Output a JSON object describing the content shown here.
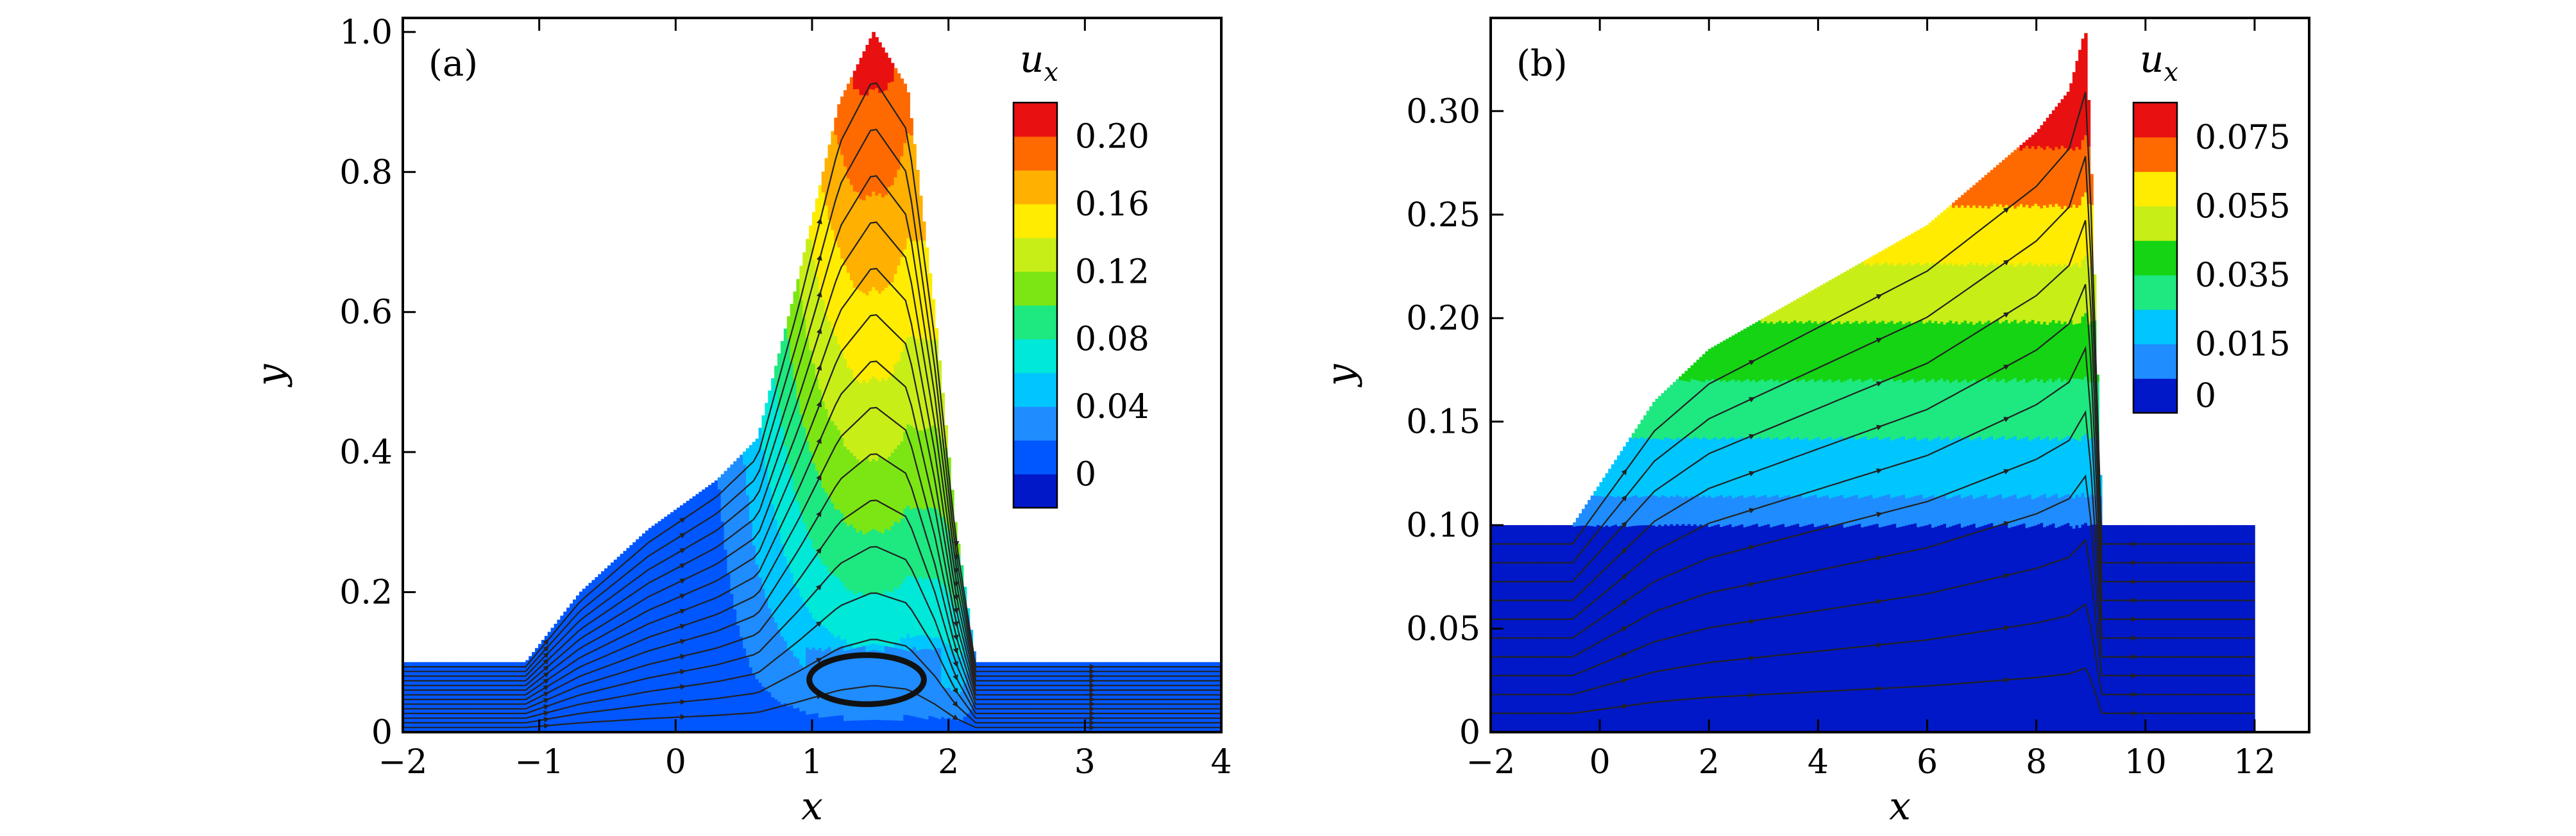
{
  "figure": {
    "background": "#ffffff",
    "axis_color": "#000000"
  },
  "chart_data": [
    {
      "type": "heatmap",
      "panel_label": "(a)",
      "xlabel": "x",
      "ylabel": "y",
      "xlim": [
        -2,
        4
      ],
      "ylim": [
        0,
        1.02
      ],
      "x_ticks": [
        -2,
        -1,
        0,
        1,
        2,
        3,
        4
      ],
      "x_tick_labels": [
        "−2",
        "−1",
        "0",
        "1",
        "2",
        "3",
        "4"
      ],
      "y_ticks": [
        0,
        0.2,
        0.4,
        0.6,
        0.8,
        1.0
      ],
      "y_tick_labels": [
        "0",
        "0.2",
        "0.4",
        "0.6",
        "0.8",
        "1.0"
      ],
      "colorbar": {
        "title": "u",
        "title_sub": "x",
        "min": -0.02,
        "max": 0.22,
        "levels": [
          -0.02,
          0,
          0.02,
          0.04,
          0.06,
          0.08,
          0.1,
          0.12,
          0.14,
          0.16,
          0.18,
          0.2,
          0.22
        ],
        "tick_values": [
          0,
          0.04,
          0.08,
          0.12,
          0.16,
          0.2
        ],
        "tick_labels": [
          "0",
          "0.04",
          "0.08",
          "0.12",
          "0.16",
          "0.20"
        ]
      },
      "surface": [
        [
          -2,
          0.1
        ],
        [
          -1.1,
          0.1
        ],
        [
          -0.7,
          0.2
        ],
        [
          -0.2,
          0.29
        ],
        [
          0.3,
          0.36
        ],
        [
          0.6,
          0.42
        ],
        [
          0.9,
          0.65
        ],
        [
          1.2,
          0.9
        ],
        [
          1.45,
          1.0
        ],
        [
          1.7,
          0.92
        ],
        [
          1.9,
          0.6
        ],
        [
          2.05,
          0.3
        ],
        [
          2.2,
          0.1
        ],
        [
          4,
          0.1
        ]
      ],
      "field": {
        "type": "overturning-wave",
        "crest_x": 1.45,
        "crest_y": 1.0,
        "still_depth": 0.1,
        "umax": 0.21
      },
      "vortex": {
        "cx": 1.4,
        "cy": 0.075,
        "rx": 0.42,
        "ry": 0.035
      },
      "streamline_count": 14
    },
    {
      "type": "heatmap",
      "panel_label": "(b)",
      "xlabel": "x",
      "ylabel": "y",
      "xlim": [
        -2,
        13
      ],
      "ylim": [
        0,
        0.345
      ],
      "x_ticks": [
        -2,
        0,
        2,
        4,
        6,
        8,
        10,
        12
      ],
      "x_tick_labels": [
        "−2",
        "0",
        "2",
        "4",
        "6",
        "8",
        "10",
        "12"
      ],
      "y_ticks": [
        0,
        0.05,
        0.1,
        0.15,
        0.2,
        0.25,
        0.3
      ],
      "y_tick_labels": [
        "0",
        "0.05",
        "0.10",
        "0.15",
        "0.20",
        "0.25",
        "0.30"
      ],
      "colorbar": {
        "title": "u",
        "title_sub": "x",
        "min": -0.005,
        "max": 0.085,
        "levels": [
          -0.005,
          0.005,
          0.015,
          0.025,
          0.035,
          0.045,
          0.055,
          0.065,
          0.075,
          0.085
        ],
        "tick_values": [
          0,
          0.015,
          0.035,
          0.055,
          0.075
        ],
        "tick_labels": [
          "0",
          "0.015",
          "0.035",
          "0.055",
          "0.075"
        ]
      },
      "surface": [
        [
          -2,
          0.1
        ],
        [
          -0.5,
          0.1
        ],
        [
          0,
          0.12
        ],
        [
          1,
          0.16
        ],
        [
          2,
          0.185
        ],
        [
          4,
          0.215
        ],
        [
          6,
          0.245
        ],
        [
          8,
          0.29
        ],
        [
          8.6,
          0.31
        ],
        [
          8.9,
          0.34
        ],
        [
          9.0,
          0.28
        ],
        [
          9.2,
          0.1
        ],
        [
          12,
          0.1
        ]
      ],
      "field": {
        "type": "bore",
        "front_x": 8.95,
        "still_depth": 0.1,
        "umax": 0.082
      },
      "domain_end_x": 12,
      "streamline_count": 10
    }
  ]
}
